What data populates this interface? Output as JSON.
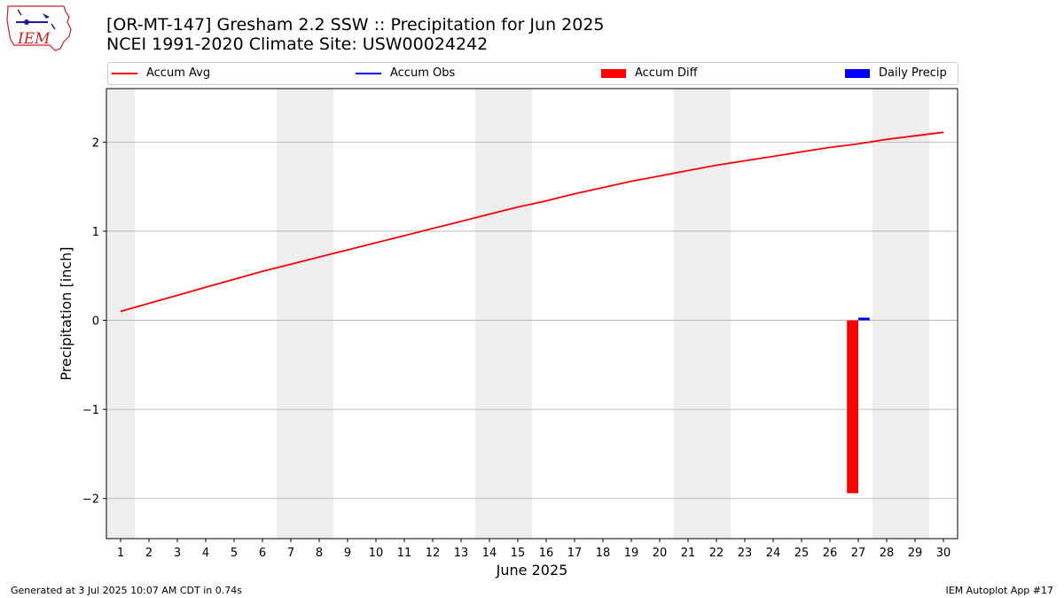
{
  "title": {
    "line1": "[OR-MT-147] Gresham 2.2 SSW :: Precipitation for Jun 2025",
    "line2": "NCEI 1991-2020 Climate Site: USW00024242"
  },
  "logo": {
    "text": "IEM"
  },
  "footer": {
    "left": "Generated at 3 Jul 2025 10:07 AM CDT in 0.74s",
    "right": "IEM Autoplot App #17"
  },
  "colors": {
    "accum_avg": "#ff0000",
    "accum_obs": "#0000ff",
    "accum_diff": "#ff0000",
    "daily_precip": "#0000ff",
    "weekend_shade": "#eeeeee",
    "grid": "#b0b0b0"
  },
  "chart_data": {
    "type": "line",
    "xlabel": "June 2025",
    "ylabel": "Precipitation [inch]",
    "xlim": [
      0.5,
      30.5
    ],
    "ylim": [
      -2.45,
      2.6
    ],
    "x_ticks": [
      1,
      2,
      3,
      4,
      5,
      6,
      7,
      8,
      9,
      10,
      11,
      12,
      13,
      14,
      15,
      16,
      17,
      18,
      19,
      20,
      21,
      22,
      23,
      24,
      25,
      26,
      27,
      28,
      29,
      30
    ],
    "y_ticks": [
      -2,
      -1,
      0,
      1,
      2
    ],
    "y_tick_labels": [
      "−2",
      "−1",
      "0",
      "1",
      "2"
    ],
    "grid": "horizontal",
    "legend_position": "top",
    "weekend_days": [
      1,
      7,
      8,
      14,
      15,
      21,
      22,
      28,
      29
    ],
    "legend": [
      {
        "label": "Accum Avg",
        "kind": "line",
        "color": "#ff0000"
      },
      {
        "label": "Accum Obs",
        "kind": "line",
        "color": "#0000ff"
      },
      {
        "label": "Accum Diff",
        "kind": "bar",
        "color": "#ff0000"
      },
      {
        "label": "Daily Precip",
        "kind": "bar",
        "color": "#0000ff"
      }
    ],
    "series": [
      {
        "name": "Accum Avg",
        "type": "line",
        "x": [
          1,
          2,
          3,
          4,
          5,
          6,
          7,
          8,
          9,
          10,
          11,
          12,
          13,
          14,
          15,
          16,
          17,
          18,
          19,
          20,
          21,
          22,
          23,
          24,
          25,
          26,
          27,
          28,
          29,
          30
        ],
        "values": [
          0.1,
          0.19,
          0.28,
          0.37,
          0.46,
          0.55,
          0.63,
          0.71,
          0.79,
          0.87,
          0.95,
          1.03,
          1.11,
          1.19,
          1.27,
          1.34,
          1.42,
          1.49,
          1.56,
          1.62,
          1.68,
          1.74,
          1.79,
          1.84,
          1.89,
          1.94,
          1.98,
          2.03,
          2.07,
          2.11
        ]
      },
      {
        "name": "Accum Diff",
        "type": "bar",
        "x": [
          27
        ],
        "values": [
          -1.94
        ]
      },
      {
        "name": "Daily Precip",
        "type": "bar",
        "x": [
          27
        ],
        "values": [
          0.03
        ]
      }
    ]
  }
}
